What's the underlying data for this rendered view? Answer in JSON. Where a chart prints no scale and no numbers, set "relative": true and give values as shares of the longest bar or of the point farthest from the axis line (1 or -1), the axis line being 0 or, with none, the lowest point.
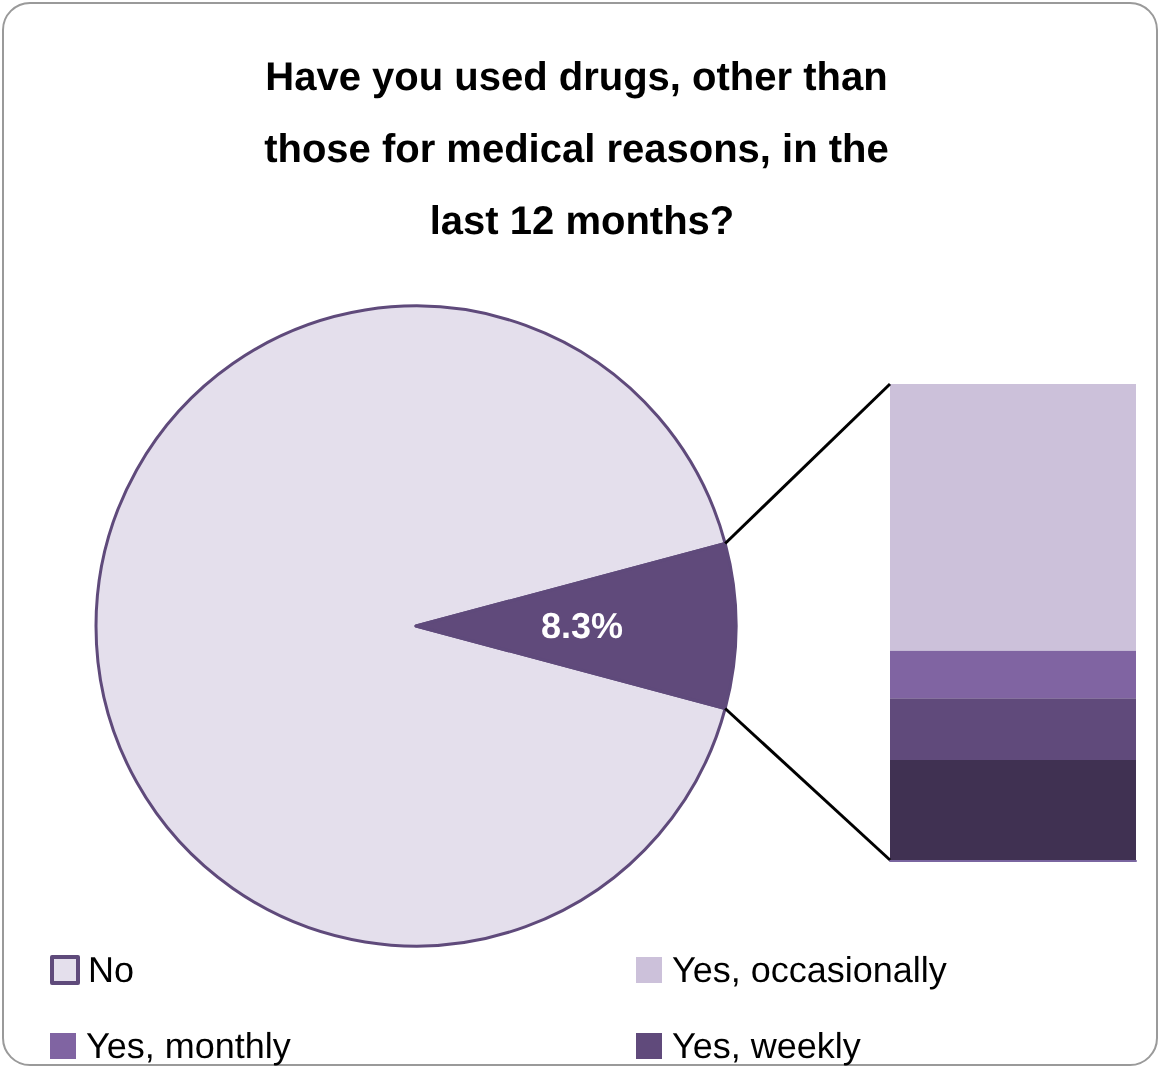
{
  "chart_data": [
    {
      "type": "pie",
      "title": "Have you used drugs, other than those for medical reasons, in the last 12 months?",
      "categories": [
        "No",
        null
      ],
      "values": [
        91.7,
        8.3
      ],
      "colors": [
        "#e4dfec",
        "#604a7b"
      ],
      "value_labels": [
        null,
        "8.3%"
      ],
      "legend": "bottom"
    },
    {
      "type": "bar",
      "stacked": true,
      "relative": true,
      "categories": [
        null
      ],
      "legend": "bottom",
      "series": [
        {
          "color": "#403152",
          "values": [
            0.21
          ]
        },
        {
          "name": "Yes, weekly",
          "color": "#604a7b",
          "values": [
            0.13
          ]
        },
        {
          "name": "Yes, monthly",
          "color": "#8064a2",
          "values": [
            0.1
          ]
        },
        {
          "name": "Yes, occasionally",
          "color": "#ccc1da",
          "values": [
            0.56
          ]
        }
      ]
    }
  ]
}
